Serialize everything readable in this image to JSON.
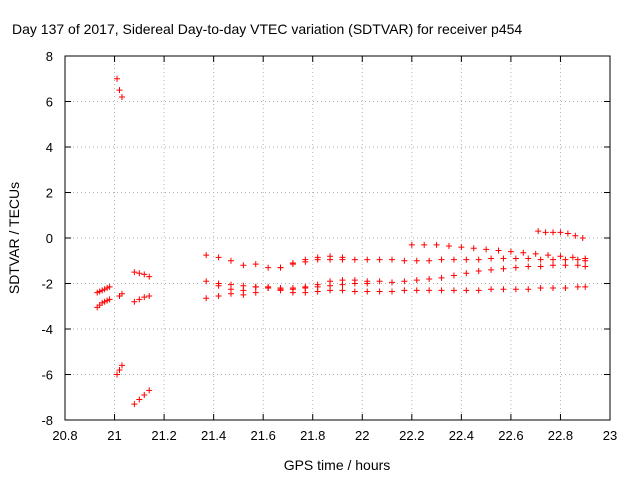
{
  "chart_data": {
    "type": "scatter",
    "title": "Day 137 of 2017, Sidereal Day-to-day VTEC variation (SDTVAR) for receiver p454",
    "xlabel": "GPS time / hours",
    "ylabel": "SDTVAR / TECUs",
    "xlim": [
      20.8,
      23
    ],
    "ylim": [
      -8,
      8
    ],
    "x_ticks": [
      20.8,
      21,
      21.2,
      21.4,
      21.6,
      21.8,
      22,
      22.2,
      22.4,
      22.6,
      22.8,
      23
    ],
    "y_ticks": [
      -8,
      -6,
      -4,
      -2,
      0,
      2,
      4,
      6,
      8
    ],
    "x_tick_labels": [
      "20.8",
      "21",
      "21.2",
      "21.4",
      "21.6",
      "21.8",
      "22",
      "22.2",
      "22.4",
      "22.6",
      "22.8",
      "23"
    ],
    "y_tick_labels": [
      "-8",
      "-6",
      "-4",
      "-2",
      "0",
      "2",
      "4",
      "6",
      "8"
    ],
    "grid": true,
    "marker": "+",
    "colors": {
      "series": "#ff0000",
      "grid": "#b0b0b0",
      "axis": "#000000"
    },
    "series": [
      {
        "name": "s1",
        "x": [
          20.93,
          20.94,
          20.95,
          20.96,
          20.97,
          20.98
        ],
        "y": [
          -2.4,
          -2.35,
          -2.3,
          -2.25,
          -2.2,
          -2.15
        ]
      },
      {
        "name": "s2",
        "x": [
          20.93,
          20.94,
          20.95,
          20.96,
          20.97,
          20.98
        ],
        "y": [
          -3.05,
          -2.95,
          -2.85,
          -2.8,
          -2.75,
          -2.7
        ]
      },
      {
        "name": "s3",
        "x": [
          21.01,
          21.02,
          21.03
        ],
        "y": [
          7.0,
          6.5,
          6.2
        ]
      },
      {
        "name": "s4",
        "x": [
          21.01,
          21.02,
          21.03
        ],
        "y": [
          -6.0,
          -5.8,
          -5.6
        ]
      },
      {
        "name": "s5",
        "x": [
          21.02,
          21.03
        ],
        "y": [
          -2.55,
          -2.45
        ]
      },
      {
        "name": "s6",
        "x": [
          21.08,
          21.1,
          21.12,
          21.14
        ],
        "y": [
          -1.5,
          -1.55,
          -1.6,
          -1.7
        ]
      },
      {
        "name": "s7",
        "x": [
          21.08,
          21.1,
          21.12,
          21.14
        ],
        "y": [
          -2.8,
          -2.7,
          -2.6,
          -2.55
        ]
      },
      {
        "name": "s8",
        "x": [
          21.08,
          21.1,
          21.12,
          21.14
        ],
        "y": [
          -7.3,
          -7.1,
          -6.9,
          -6.7
        ]
      },
      {
        "name": "s9",
        "x": [
          21.37,
          21.42,
          21.47,
          21.52,
          21.57,
          21.62,
          21.67,
          21.72,
          21.77,
          21.82,
          21.87,
          21.92,
          21.97,
          22.02,
          22.07,
          22.12,
          22.17,
          22.22,
          22.27,
          22.32,
          22.37,
          22.42,
          22.47,
          22.52,
          22.57,
          22.62,
          22.67,
          22.72,
          22.77,
          22.82,
          22.87,
          22.9
        ],
        "y": [
          -0.75,
          -0.85,
          -1.0,
          -1.2,
          -1.15,
          -1.3,
          -1.3,
          -1.15,
          -1.05,
          -0.95,
          -0.95,
          -0.95,
          -0.95,
          -0.95,
          -0.95,
          -0.95,
          -1.0,
          -1.0,
          -1.0,
          -0.95,
          -0.95,
          -0.95,
          -0.95,
          -0.9,
          -0.9,
          -0.9,
          -0.9,
          -0.95,
          -0.95,
          -0.95,
          -0.95,
          -1.0
        ]
      },
      {
        "name": "s10",
        "x": [
          21.37,
          21.42,
          21.47,
          21.52,
          21.57,
          21.62,
          21.67,
          21.72,
          21.77,
          21.82,
          21.87,
          21.92,
          21.97,
          22.02,
          22.07,
          22.12,
          22.17,
          22.22,
          22.27,
          22.32,
          22.37,
          22.42,
          22.47,
          22.52,
          22.57,
          22.62,
          22.67,
          22.72,
          22.77,
          22.82,
          22.87,
          22.9
        ],
        "y": [
          -1.9,
          -2.1,
          -2.25,
          -2.3,
          -2.15,
          -2.15,
          -2.2,
          -2.2,
          -2.15,
          -2.05,
          -1.9,
          -1.85,
          -1.85,
          -1.9,
          -1.9,
          -1.95,
          -1.9,
          -1.85,
          -1.8,
          -1.75,
          -1.65,
          -1.55,
          -1.45,
          -1.4,
          -1.35,
          -1.3,
          -1.25,
          -1.25,
          -1.2,
          -1.2,
          -1.2,
          -1.25
        ]
      },
      {
        "name": "s11",
        "x": [
          21.37,
          21.42,
          21.47,
          21.52,
          21.57,
          21.62,
          21.67,
          21.72,
          21.77,
          21.82,
          21.87,
          21.92,
          21.97,
          22.02,
          22.07,
          22.12,
          22.17,
          22.22,
          22.27,
          22.32,
          22.37,
          22.42,
          22.47,
          22.52,
          22.57,
          22.62,
          22.67,
          22.72,
          22.77,
          22.82,
          22.87,
          22.9
        ],
        "y": [
          -2.65,
          -2.55,
          -2.45,
          -2.5,
          -2.4,
          -2.2,
          -2.3,
          -2.4,
          -2.4,
          -2.35,
          -2.3,
          -2.3,
          -2.35,
          -2.35,
          -2.35,
          -2.35,
          -2.3,
          -2.3,
          -2.3,
          -2.3,
          -2.3,
          -2.3,
          -2.3,
          -2.25,
          -2.25,
          -2.25,
          -2.25,
          -2.2,
          -2.2,
          -2.2,
          -2.15,
          -2.15
        ]
      },
      {
        "name": "s12",
        "x": [
          21.42,
          21.47,
          21.52,
          21.57,
          21.62,
          21.67,
          21.72,
          21.77,
          21.82,
          21.87,
          21.92,
          21.97,
          22.02
        ],
        "y": [
          -2.0,
          -2.05,
          -2.1,
          -2.15,
          -2.2,
          -2.25,
          -2.25,
          -2.2,
          -2.15,
          -2.1,
          -2.05,
          -2.0,
          -2.0
        ]
      },
      {
        "name": "s13",
        "x": [
          21.67,
          21.72,
          21.77,
          21.82,
          21.87,
          21.92
        ],
        "y": [
          -1.3,
          -1.1,
          -0.95,
          -0.85,
          -0.8,
          -0.85
        ]
      },
      {
        "name": "s14",
        "x": [
          22.2,
          22.25,
          22.3,
          22.35,
          22.4,
          22.45,
          22.5,
          22.55,
          22.6,
          22.65,
          22.7,
          22.75,
          22.8,
          22.85,
          22.9
        ],
        "y": [
          -0.3,
          -0.3,
          -0.3,
          -0.35,
          -0.4,
          -0.45,
          -0.5,
          -0.55,
          -0.6,
          -0.65,
          -0.7,
          -0.75,
          -0.8,
          -0.85,
          -0.9
        ]
      },
      {
        "name": "s15",
        "x": [
          22.71,
          22.74,
          22.77,
          22.8,
          22.83,
          22.86,
          22.89
        ],
        "y": [
          0.3,
          0.25,
          0.25,
          0.25,
          0.2,
          0.1,
          0.0
        ]
      }
    ]
  }
}
